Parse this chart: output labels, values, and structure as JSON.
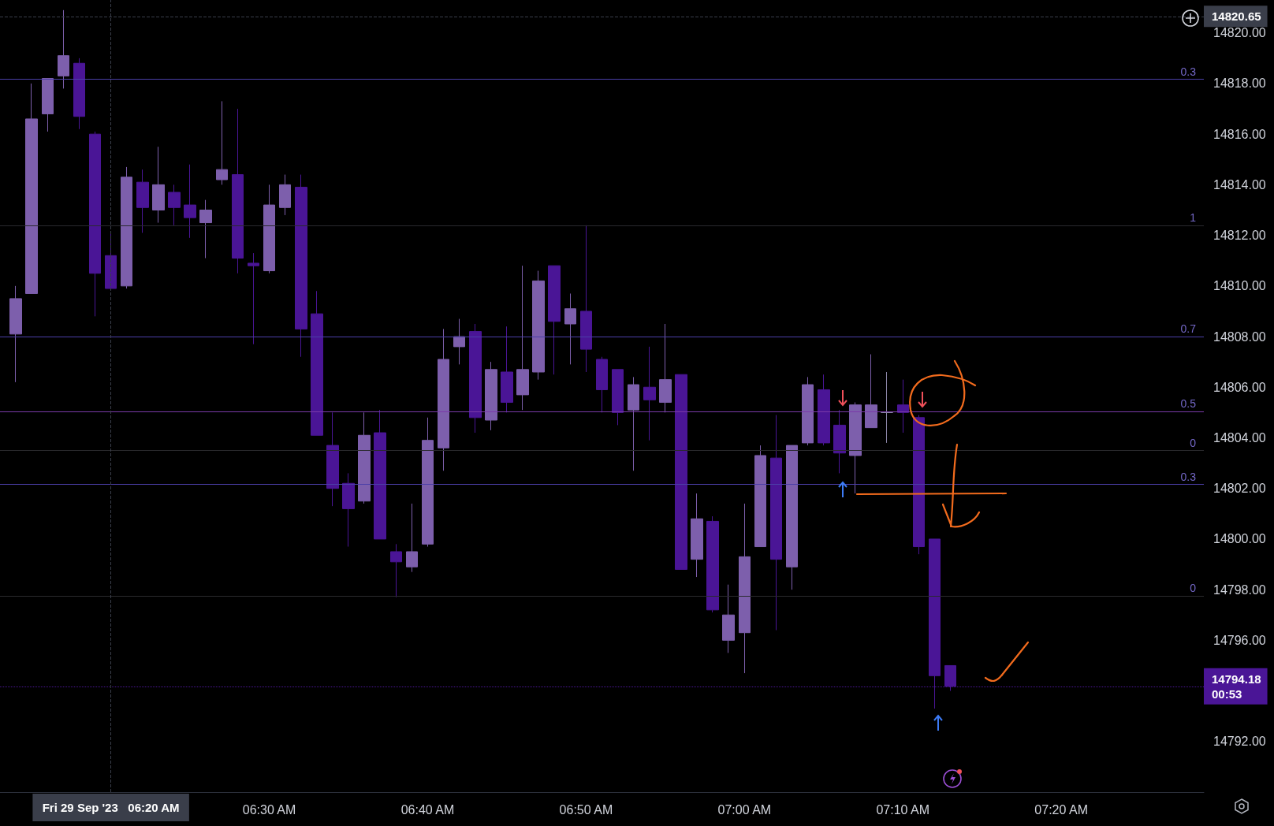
{
  "chart_data": {
    "type": "candlestick",
    "x": [
      "2023-09-29T06:14",
      "2023-09-29T06:15",
      "2023-09-29T06:16",
      "2023-09-29T06:17",
      "2023-09-29T06:18",
      "2023-09-29T06:19",
      "2023-09-29T06:20",
      "2023-09-29T06:21",
      "2023-09-29T06:22",
      "2023-09-29T06:23",
      "2023-09-29T06:24",
      "2023-09-29T06:25",
      "2023-09-29T06:26",
      "2023-09-29T06:27",
      "2023-09-29T06:28",
      "2023-09-29T06:29",
      "2023-09-29T06:30",
      "2023-09-29T06:31",
      "2023-09-29T06:32",
      "2023-09-29T06:33",
      "2023-09-29T06:34",
      "2023-09-29T06:35",
      "2023-09-29T06:36",
      "2023-09-29T06:37",
      "2023-09-29T06:38",
      "2023-09-29T06:39",
      "2023-09-29T06:40",
      "2023-09-29T06:41",
      "2023-09-29T06:42",
      "2023-09-29T06:43",
      "2023-09-29T06:44",
      "2023-09-29T06:45",
      "2023-09-29T06:46",
      "2023-09-29T06:47",
      "2023-09-29T06:48",
      "2023-09-29T06:49",
      "2023-09-29T06:50",
      "2023-09-29T06:51",
      "2023-09-29T06:52",
      "2023-09-29T06:53",
      "2023-09-29T06:54",
      "2023-09-29T06:55",
      "2023-09-29T06:56",
      "2023-09-29T06:57",
      "2023-09-29T06:58",
      "2023-09-29T06:59",
      "2023-09-29T07:00",
      "2023-09-29T07:01",
      "2023-09-29T07:02",
      "2023-09-29T07:03",
      "2023-09-29T07:04",
      "2023-09-29T07:05",
      "2023-09-29T07:06",
      "2023-09-29T07:07",
      "2023-09-29T07:08",
      "2023-09-29T07:09",
      "2023-09-29T07:10",
      "2023-09-29T07:11",
      "2023-09-29T07:12",
      "2023-09-29T07:13"
    ],
    "ohlc": [
      [
        14808.1,
        14810.0,
        14806.2,
        14809.5
      ],
      [
        14809.7,
        14818.0,
        14809.7,
        14816.6
      ],
      [
        14816.8,
        14818.2,
        14816.1,
        14818.2
      ],
      [
        14818.3,
        14820.9,
        14817.8,
        14819.1
      ],
      [
        14818.8,
        14819.0,
        14816.2,
        14816.7
      ],
      [
        14816.0,
        14816.1,
        14808.8,
        14810.5
      ],
      [
        14811.2,
        14812.1,
        14809.9,
        14809.9
      ],
      [
        14810.0,
        14814.7,
        14809.9,
        14814.3
      ],
      [
        14814.1,
        14814.6,
        14812.1,
        14813.1
      ],
      [
        14813.0,
        14815.5,
        14812.5,
        14814.0
      ],
      [
        14813.7,
        14814.0,
        14812.4,
        14813.1
      ],
      [
        14813.2,
        14814.8,
        14811.9,
        14812.7
      ],
      [
        14812.5,
        14813.4,
        14811.1,
        14813.0
      ],
      [
        14814.2,
        14817.3,
        14814.0,
        14814.6
      ],
      [
        14814.4,
        14817.0,
        14810.5,
        14811.1
      ],
      [
        14810.9,
        14811.3,
        14807.7,
        14810.8
      ],
      [
        14810.6,
        14814.0,
        14810.5,
        14813.2
      ],
      [
        14813.1,
        14814.4,
        14812.8,
        14814.0
      ],
      [
        14813.9,
        14814.4,
        14807.2,
        14808.3
      ],
      [
        14808.9,
        14809.8,
        14804.1,
        14804.1
      ],
      [
        14803.7,
        14805.0,
        14801.3,
        14802.0
      ],
      [
        14802.2,
        14802.6,
        14799.7,
        14801.2
      ],
      [
        14801.5,
        14805.0,
        14801.4,
        14804.1
      ],
      [
        14804.2,
        14805.1,
        14800.0,
        14800.0
      ],
      [
        14799.5,
        14799.8,
        14797.7,
        14799.1
      ],
      [
        14798.9,
        14801.4,
        14798.7,
        14799.5
      ],
      [
        14799.8,
        14804.8,
        14799.7,
        14803.9
      ],
      [
        14803.6,
        14808.3,
        14802.7,
        14807.1
      ],
      [
        14807.6,
        14808.7,
        14806.9,
        14808.0
      ],
      [
        14808.2,
        14808.5,
        14804.2,
        14804.8
      ],
      [
        14804.7,
        14807.0,
        14804.3,
        14806.7
      ],
      [
        14806.6,
        14808.4,
        14805.0,
        14805.4
      ],
      [
        14805.7,
        14810.8,
        14805.1,
        14806.7
      ],
      [
        14806.6,
        14810.6,
        14806.3,
        14810.2
      ],
      [
        14810.8,
        14810.8,
        14806.5,
        14808.6
      ],
      [
        14808.5,
        14809.7,
        14806.9,
        14809.1
      ],
      [
        14809.0,
        14812.4,
        14806.6,
        14807.5
      ],
      [
        14807.1,
        14807.2,
        14805.0,
        14805.9
      ],
      [
        14806.7,
        14806.7,
        14804.5,
        14805.0
      ],
      [
        14805.1,
        14806.4,
        14802.7,
        14806.1
      ],
      [
        14806.0,
        14807.6,
        14803.9,
        14805.5
      ],
      [
        14805.4,
        14808.5,
        14805.0,
        14806.3
      ],
      [
        14806.5,
        14806.5,
        14798.8,
        14798.8
      ],
      [
        14799.2,
        14801.8,
        14798.5,
        14800.8
      ],
      [
        14800.7,
        14800.9,
        14797.1,
        14797.2
      ],
      [
        14796.0,
        14798.2,
        14795.5,
        14797.0
      ],
      [
        14796.3,
        14801.4,
        14794.7,
        14799.3
      ],
      [
        14799.7,
        14803.7,
        14799.7,
        14803.3
      ],
      [
        14803.2,
        14804.9,
        14796.4,
        14799.2
      ],
      [
        14798.9,
        14803.7,
        14798.0,
        14803.7
      ],
      [
        14803.8,
        14806.4,
        14803.7,
        14806.1
      ],
      [
        14805.9,
        14806.5,
        14803.7,
        14803.8
      ],
      [
        14804.5,
        14805.1,
        14802.6,
        14803.4
      ],
      [
        14803.3,
        14805.4,
        14801.8,
        14805.3
      ],
      [
        14804.4,
        14807.3,
        14804.4,
        14805.3
      ],
      [
        14805.0,
        14806.6,
        14803.8,
        14805.0
      ],
      [
        14805.3,
        14806.3,
        14804.2,
        14805.0
      ],
      [
        14804.8,
        14804.9,
        14799.4,
        14799.7
      ],
      [
        14800.0,
        14800.0,
        14793.3,
        14794.6
      ],
      [
        14795.0,
        14795.0,
        14794.0,
        14794.18
      ]
    ],
    "colors": [
      "#7d5fac",
      "#7d5fac",
      "#7d5fac",
      "#7d5fac",
      "#4a1596",
      "#4a1596",
      "#4a1596",
      "#7d5fac",
      "#4a1596",
      "#7d5fac",
      "#4a1596",
      "#4a1596",
      "#7d5fac",
      "#7d5fac",
      "#4a1596",
      "#4a1596",
      "#7d5fac",
      "#7d5fac",
      "#4a1596",
      "#4a1596",
      "#4a1596",
      "#4a1596",
      "#7d5fac",
      "#4a1596",
      "#4a1596",
      "#7d5fac",
      "#7d5fac",
      "#7d5fac",
      "#7d5fac",
      "#4a1596",
      "#7d5fac",
      "#4a1596",
      "#7d5fac",
      "#7d5fac",
      "#4a1596",
      "#7d5fac",
      "#4a1596",
      "#4a1596",
      "#4a1596",
      "#7d5fac",
      "#4a1596",
      "#7d5fac",
      "#4a1596",
      "#7d5fac",
      "#4a1596",
      "#7d5fac",
      "#7d5fac",
      "#7d5fac",
      "#4a1596",
      "#7d5fac",
      "#7d5fac",
      "#4a1596",
      "#4a1596",
      "#7d5fac",
      "#7d5fac",
      "#8c86a8",
      "#4a1596",
      "#4a1596",
      "#4a1596",
      "#4a1596"
    ],
    "xlim": [
      "2023-09-29T06:13",
      "2023-09-29T07:29"
    ],
    "xticks": [
      {
        "value": "2023-09-29T06:30",
        "label": "06:30 AM"
      },
      {
        "value": "2023-09-29T06:40",
        "label": "06:40 AM"
      },
      {
        "value": "2023-09-29T06:50",
        "label": "06:50 AM"
      },
      {
        "value": "2023-09-29T07:00",
        "label": "07:00 AM"
      },
      {
        "value": "2023-09-29T07:10",
        "label": "07:10 AM"
      },
      {
        "value": "2023-09-29T07:20",
        "label": "07:20 AM"
      }
    ],
    "ylim": [
      14790,
      14821.3
    ],
    "yticks": [
      {
        "value": 14792,
        "label": "14792.00"
      },
      {
        "value": 14796,
        "label": "14796.00"
      },
      {
        "value": 14798,
        "label": "14798.00"
      },
      {
        "value": 14800,
        "label": "14800.00"
      },
      {
        "value": 14802,
        "label": "14802.00"
      },
      {
        "value": 14804,
        "label": "14804.00"
      },
      {
        "value": 14806,
        "label": "14806.00"
      },
      {
        "value": 14808,
        "label": "14808.00"
      },
      {
        "value": 14810,
        "label": "14810.00"
      },
      {
        "value": 14812,
        "label": "14812.00"
      },
      {
        "value": 14814,
        "label": "14814.00"
      },
      {
        "value": 14816,
        "label": "14816.00"
      },
      {
        "value": 14818,
        "label": "14818.00"
      },
      {
        "value": 14820,
        "label": "14820.00"
      }
    ],
    "ref_lines": [
      {
        "axis": "y",
        "value": 14818.17,
        "color": "#4b3fa8"
      },
      {
        "axis": "y",
        "value": 14812.4,
        "color": "#2a2a2e"
      },
      {
        "axis": "y",
        "value": 14808.0,
        "color": "#4b3fa8"
      },
      {
        "axis": "y",
        "value": 14805.05,
        "color": "#7a3aa8"
      },
      {
        "axis": "y",
        "value": 14803.5,
        "color": "#2a2a2e"
      },
      {
        "axis": "y",
        "value": 14802.16,
        "color": "#4b3fa8"
      },
      {
        "axis": "y",
        "value": 14797.75,
        "color": "#2a2a2e"
      },
      {
        "axis": "y",
        "value": 14820.65,
        "label": "14820.65",
        "color": "#3a3e4a",
        "line_style": "dashed"
      },
      {
        "axis": "y",
        "value": 14794.18,
        "label": "14794.18\n00:53",
        "color": "#4a1596",
        "line_style": "dotted"
      },
      {
        "axis": "x",
        "value": "2023-09-29T06:20",
        "label": "Fri 29 Sep '23   06:20 AM",
        "color": "#3a3e4a",
        "line_style": "dashed"
      }
    ],
    "annotations": [
      {
        "text": "0.3",
        "x": "2023-09-29T07:29",
        "y": 14818.17
      },
      {
        "text": "1",
        "x": "2023-09-29T07:29",
        "y": 14812.4
      },
      {
        "text": "0.7",
        "x": "2023-09-29T07:29",
        "y": 14808.0
      },
      {
        "text": "0.5",
        "x": "2023-09-29T07:29",
        "y": 14805.05
      },
      {
        "text": "0",
        "x": "2023-09-29T07:29",
        "y": 14803.5
      },
      {
        "text": "0.3",
        "x": "2023-09-29T07:29",
        "y": 14802.16
      },
      {
        "text": "0",
        "x": "2023-09-29T07:29",
        "y": 14797.75
      }
    ]
  }
}
